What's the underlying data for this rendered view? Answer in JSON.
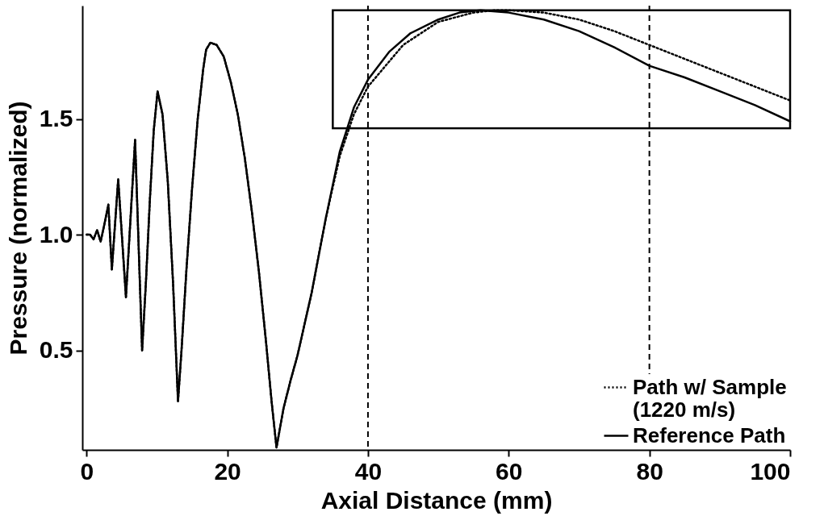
{
  "chart_data": {
    "type": "line",
    "xlabel": "Axial Distance (mm)",
    "ylabel": "Pressure (normalized)",
    "xlim": [
      -0.6,
      100
    ],
    "ylim": [
      0.07,
      1.99
    ],
    "xticks": [
      0,
      20,
      40,
      60,
      80,
      100
    ],
    "yticks": [
      {
        "value": 0.5,
        "label": "0.5"
      },
      {
        "value": 1,
        "label": "1.0"
      },
      {
        "value": 1.5,
        "label": "1.5"
      }
    ],
    "legend": "bottom right",
    "grid": false,
    "ref_lines": [
      {
        "axis": "x",
        "value": 40,
        "line_style": "dashed"
      },
      {
        "axis": "x",
        "value": 80,
        "line_style": "dashed"
      }
    ],
    "series": [
      {
        "name": "Path w/ Sample (1220 m/s)",
        "color": "#000000",
        "line_style": "dotted",
        "x": [
          0,
          0.5,
          1,
          1.5,
          2,
          2.5,
          3.1,
          3.6,
          4.5,
          5.6,
          6.9,
          7.9,
          8.45,
          9,
          9.55,
          10.1,
          10.8,
          11.55,
          12.3,
          13,
          13.5,
          14.2,
          15,
          15.8,
          16.6,
          17,
          17.6,
          18.5,
          19.5,
          20.5,
          21.5,
          22.5,
          23.5,
          24.5,
          25.5,
          26.3,
          27,
          28,
          29,
          30,
          32,
          34,
          36,
          38,
          40,
          45,
          50,
          55,
          58,
          60,
          65,
          70,
          75,
          80,
          85,
          90,
          95,
          100
        ],
        "values": [
          1,
          1,
          0.98,
          1.02,
          0.97,
          1.04,
          1.13,
          0.85,
          1.24,
          0.73,
          1.41,
          0.5,
          0.8,
          1.15,
          1.45,
          1.62,
          1.52,
          1.23,
          0.79,
          0.28,
          0.5,
          0.85,
          1.2,
          1.5,
          1.72,
          1.8,
          1.83,
          1.82,
          1.77,
          1.66,
          1.52,
          1.33,
          1.1,
          0.84,
          0.54,
          0.28,
          0.08,
          0.25,
          0.37,
          0.48,
          0.75,
          1.07,
          1.34,
          1.52,
          1.64,
          1.82,
          1.92,
          1.96,
          1.97,
          1.97,
          1.96,
          1.93,
          1.88,
          1.82,
          1.76,
          1.7,
          1.64,
          1.58
        ]
      },
      {
        "name": "Reference Path",
        "color": "#000000",
        "line_style": "solid",
        "x": [
          0,
          0.5,
          1,
          1.5,
          2,
          2.5,
          3.1,
          3.6,
          4.5,
          5.6,
          6.9,
          7.9,
          8.45,
          9,
          9.55,
          10.1,
          10.8,
          11.55,
          12.3,
          13,
          13.5,
          14.2,
          15,
          15.8,
          16.6,
          17,
          17.6,
          18.5,
          19.5,
          20.5,
          21.5,
          22.5,
          23.5,
          24.5,
          25.5,
          26.3,
          27,
          28,
          29,
          30,
          32,
          34,
          36,
          38,
          40,
          43,
          46,
          50,
          53,
          56,
          60,
          65,
          70,
          75,
          80,
          85,
          90,
          95,
          100
        ],
        "values": [
          1,
          1,
          0.98,
          1.02,
          0.97,
          1.04,
          1.13,
          0.85,
          1.24,
          0.73,
          1.41,
          0.5,
          0.8,
          1.15,
          1.45,
          1.62,
          1.52,
          1.23,
          0.79,
          0.28,
          0.5,
          0.85,
          1.2,
          1.5,
          1.72,
          1.8,
          1.83,
          1.82,
          1.77,
          1.66,
          1.52,
          1.33,
          1.1,
          0.84,
          0.54,
          0.28,
          0.08,
          0.25,
          0.37,
          0.48,
          0.75,
          1.07,
          1.36,
          1.55,
          1.67,
          1.79,
          1.87,
          1.93,
          1.96,
          1.97,
          1.96,
          1.93,
          1.88,
          1.81,
          1.73,
          1.68,
          1.62,
          1.56,
          1.49
        ]
      }
    ]
  }
}
